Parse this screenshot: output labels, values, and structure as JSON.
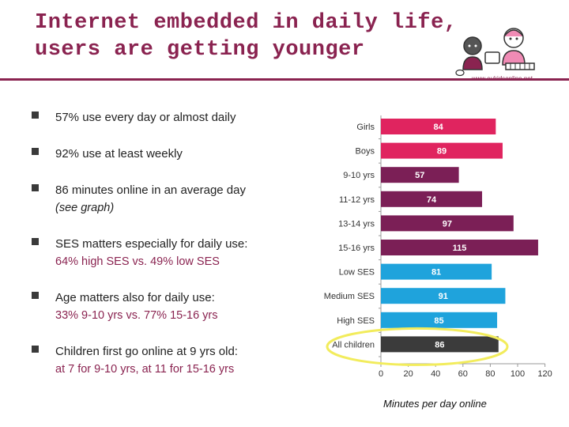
{
  "title": {
    "line1": "Internet embedded in daily life,",
    "line2": "users are getting younger"
  },
  "logo": {
    "url_text": "www.eukidsonline.net"
  },
  "bullets": [
    {
      "main": "57% use every day or almost daily",
      "sub": "",
      "sub_style": ""
    },
    {
      "main": "92% use at least weekly",
      "sub": "",
      "sub_style": ""
    },
    {
      "main": "86 minutes online in an average day",
      "sub": "(see graph)",
      "sub_style": "italic"
    },
    {
      "main": "SES matters especially for daily use:",
      "sub": "64% high SES vs. 49% low SES",
      "sub_style": "accent"
    },
    {
      "main": "Age matters also for daily use:",
      "sub": "33% 9-10 yrs vs. 77% 15-16 yrs",
      "sub_style": "accent"
    },
    {
      "main": "Children first go online at 9 yrs old:",
      "sub": "at 7 for 9-10 yrs, at 11 for 15-16 yrs",
      "sub_style": "accent"
    }
  ],
  "chart_data": {
    "type": "bar",
    "orientation": "horizontal",
    "categories": [
      "Girls",
      "Boys",
      "9-10 yrs",
      "11-12 yrs",
      "13-14 yrs",
      "15-16 yrs",
      "Low SES",
      "Medium SES",
      "High SES",
      "All children"
    ],
    "values": [
      84,
      89,
      57,
      74,
      97,
      115,
      81,
      91,
      85,
      86
    ],
    "colors": [
      "#e0245f",
      "#e0245f",
      "#7b1f56",
      "#7b1f56",
      "#7b1f56",
      "#7b1f56",
      "#1fa3dc",
      "#1fa3dc",
      "#1fa3dc",
      "#3b3b3b"
    ],
    "highlight_category": "All children",
    "highlight_color": "#f2ec5c",
    "xlabel": "Minutes per day online",
    "xlim": [
      0,
      120
    ],
    "xticks": [
      0,
      20,
      40,
      60,
      80,
      100,
      120
    ],
    "data_labels": true,
    "grid": false
  }
}
